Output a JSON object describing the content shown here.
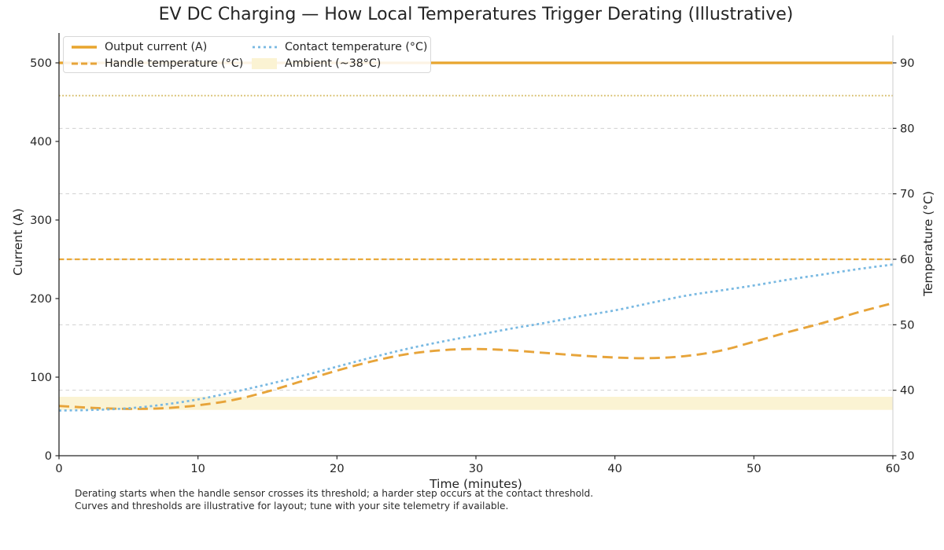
{
  "chart_data": {
    "type": "line",
    "title": "EV DC Charging — How Local Temperatures Trigger Derating (Illustrative)",
    "xlabel": "Time (minutes)",
    "ylabel_left": "Current (A)",
    "ylabel_right": "Temperature (°C)",
    "xlim": [
      0,
      60
    ],
    "ylim_left": [
      0,
      535
    ],
    "ylim_right": [
      30,
      94.2
    ],
    "xticks": [
      0,
      10,
      20,
      30,
      40,
      50,
      60
    ],
    "yticks_left": [
      0,
      100,
      200,
      300,
      400,
      500
    ],
    "yticks_right": [
      30,
      40,
      50,
      60,
      70,
      80,
      90
    ],
    "grid": "dashed horizontal gridlines at right-axis ticks",
    "grid_color": "#d0d0d0",
    "legend_position": "upper left, 2 columns",
    "series": [
      {
        "name": "Output current (A)",
        "axis": "left",
        "style": "solid",
        "color": "#E8A52E",
        "width": 3.2,
        "x": [
          0,
          60
        ],
        "y": [
          500,
          500
        ]
      },
      {
        "name": "Handle temperature (°C)",
        "axis": "right",
        "style": "dashed",
        "color": "#E7A43A",
        "width": 2.9,
        "x": [
          0,
          2.5,
          5,
          7.5,
          10,
          12.5,
          15,
          17.5,
          20,
          22.5,
          25,
          27.5,
          30,
          32.5,
          35,
          37.5,
          40,
          42.5,
          45,
          47.5,
          50,
          52.5,
          55,
          57.5,
          60
        ],
        "y": [
          37.6,
          37.3,
          37.15,
          37.25,
          37.7,
          38.5,
          39.8,
          41.4,
          43.0,
          44.4,
          45.5,
          46.1,
          46.3,
          46.1,
          45.7,
          45.3,
          45.0,
          44.9,
          45.2,
          46.0,
          47.4,
          48.9,
          50.3,
          51.9,
          53.3
        ]
      },
      {
        "name": "Contact temperature (°C)",
        "axis": "right",
        "style": "dotted",
        "color": "#79B9E2",
        "width": 2.7,
        "x": [
          0,
          2.5,
          5,
          7.5,
          10,
          12.5,
          15,
          17.5,
          20,
          22.5,
          25,
          27.5,
          30,
          32.5,
          35,
          37.5,
          40,
          42.5,
          45,
          47.5,
          50,
          52.5,
          55,
          57.5,
          60
        ],
        "y": [
          36.9,
          37.0,
          37.25,
          37.8,
          38.6,
          39.7,
          40.9,
          42.2,
          43.6,
          45.0,
          46.3,
          47.4,
          48.4,
          49.4,
          50.3,
          51.3,
          52.2,
          53.3,
          54.4,
          55.2,
          56.0,
          56.9,
          57.7,
          58.5,
          59.2
        ]
      }
    ],
    "thresholds": [
      {
        "name": "handle-threshold",
        "value": 60,
        "axis": "right",
        "style": "dashed-short",
        "color": "#E9A93B",
        "width": 2.2
      },
      {
        "name": "contact-threshold",
        "value": 85,
        "axis": "right",
        "style": "dotted-fine",
        "color": "#D6BC66",
        "width": 1.8
      }
    ],
    "ambient_band": {
      "label": "Ambient (~38°C)",
      "low": 37,
      "high": 39,
      "color": "#FBF3D3"
    },
    "legend_items": [
      {
        "label": "Output current (A)",
        "swatch": "line-solid",
        "color": "#E8A52E"
      },
      {
        "label": "Handle temperature (°C)",
        "swatch": "line-dashed",
        "color": "#E7A43A"
      },
      {
        "label": "Contact temperature (°C)",
        "swatch": "line-dotted",
        "color": "#79B9E2"
      },
      {
        "label": "Ambient (~38°C)",
        "swatch": "patch",
        "color": "#FBF3D3"
      }
    ]
  },
  "footnotes": [
    "Derating starts when the handle sensor crosses its threshold; a harder step occurs at the contact threshold.",
    "Curves and thresholds are illustrative for layout; tune with your site telemetry if available."
  ]
}
